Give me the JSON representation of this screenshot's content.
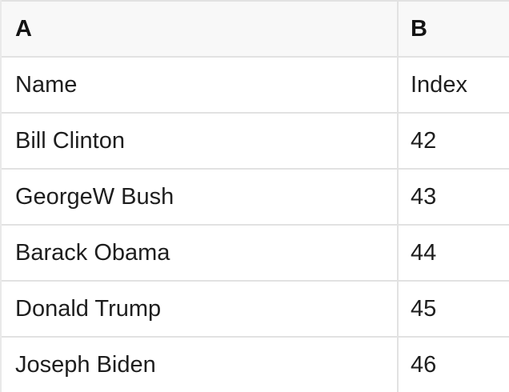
{
  "colors": {
    "row_bg": "#ffffff",
    "header_bg": "#f8f8f8",
    "grid_border": "#e2e2e2",
    "text": "#1e1e1e",
    "header_text": "#141414"
  },
  "table": {
    "column_headers": [
      "A",
      "B"
    ],
    "rows": [
      {
        "a": "Name",
        "b": "Index"
      },
      {
        "a": "Bill Clinton",
        "b": "42"
      },
      {
        "a": "GeorgeW Bush",
        "b": "43"
      },
      {
        "a": "Barack Obama",
        "b": "44"
      },
      {
        "a": "Donald Trump",
        "b": "45"
      },
      {
        "a": "Joseph Biden",
        "b": "46"
      }
    ]
  }
}
